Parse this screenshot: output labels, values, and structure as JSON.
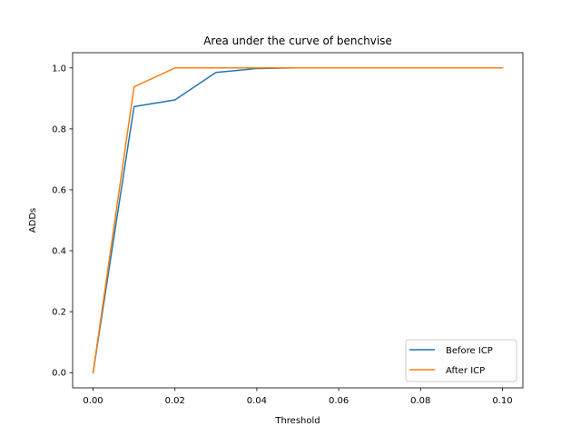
{
  "chart_data": {
    "type": "line",
    "title": "Area under the curve of benchvise",
    "xlabel": "Threshold",
    "ylabel": "ADDs",
    "xlim": [
      -0.005,
      0.105
    ],
    "ylim": [
      -0.05,
      1.05
    ],
    "xticks": [
      0.0,
      0.02,
      0.04,
      0.06,
      0.08,
      0.1
    ],
    "xtick_labels": [
      "0.00",
      "0.02",
      "0.04",
      "0.06",
      "0.08",
      "0.10"
    ],
    "yticks": [
      0.0,
      0.2,
      0.4,
      0.6,
      0.8,
      1.0
    ],
    "ytick_labels": [
      "0.0",
      "0.2",
      "0.4",
      "0.6",
      "0.8",
      "1.0"
    ],
    "grid": false,
    "legend_position": "lower-right",
    "series": [
      {
        "name": "Before ICP",
        "color": "#1f77b4",
        "x": [
          0.0,
          0.01,
          0.02,
          0.03,
          0.04,
          0.05,
          0.06,
          0.07,
          0.08,
          0.09,
          0.1
        ],
        "y": [
          0.0,
          0.873,
          0.895,
          0.985,
          0.998,
          1.0,
          1.0,
          1.0,
          1.0,
          1.0,
          1.0
        ]
      },
      {
        "name": "After ICP",
        "color": "#ff7f0e",
        "x": [
          0.0,
          0.01,
          0.02,
          0.03,
          0.04,
          0.05,
          0.06,
          0.07,
          0.08,
          0.09,
          0.1
        ],
        "y": [
          0.0,
          0.938,
          1.0,
          1.0,
          1.0,
          1.0,
          1.0,
          1.0,
          1.0,
          1.0,
          1.0
        ]
      }
    ]
  }
}
